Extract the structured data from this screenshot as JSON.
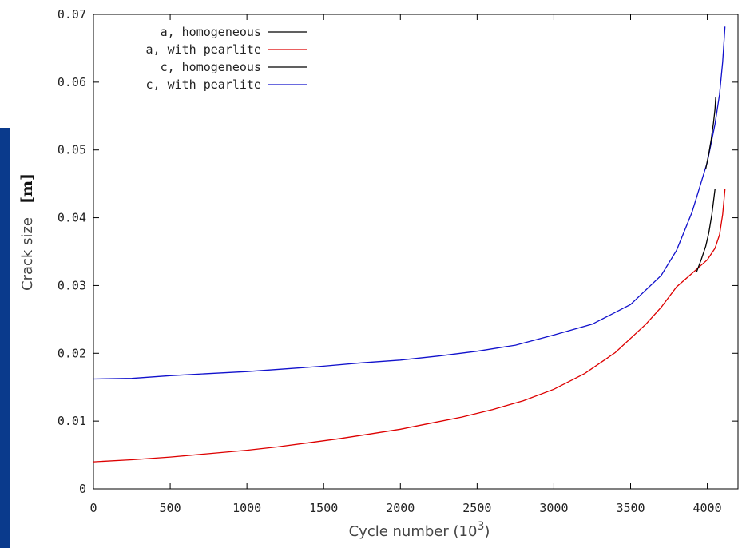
{
  "colors": {
    "left_band": "#0a3a8c",
    "axes": "#000000",
    "text": "#222222"
  },
  "chart_data": {
    "type": "line",
    "xlabel": "Cycle number (10",
    "xlabel_superscript": "3",
    "xlabel_close": ")",
    "ylabel": "Crack size",
    "ylabel_unit": "[m]",
    "xlim": [
      0,
      4200
    ],
    "ylim": [
      0,
      0.07
    ],
    "x_ticks": [
      0,
      500,
      1000,
      1500,
      2000,
      2500,
      3000,
      3500,
      4000
    ],
    "x_tick_labels": [
      "0",
      "500",
      "1000",
      "1500",
      "2000",
      "2500",
      "3000",
      "3500",
      "4000"
    ],
    "y_ticks": [
      0,
      0.01,
      0.02,
      0.03,
      0.04,
      0.05,
      0.06,
      0.07
    ],
    "y_tick_labels": [
      "0",
      "0.01",
      "0.02",
      "0.03",
      "0.04",
      "0.05",
      "0.06",
      "0.07"
    ],
    "grid": false,
    "legend_position": "top-left",
    "series": [
      {
        "name": "a, homogeneous",
        "color": "#000000",
        "x": [
          3930,
          3960,
          3990,
          4010,
          4030,
          4050
        ],
        "y": [
          0.032,
          0.0338,
          0.0358,
          0.0378,
          0.0405,
          0.0442
        ]
      },
      {
        "name": "a, with pearlite",
        "color": "#dd0000",
        "x": [
          0,
          250,
          500,
          750,
          1000,
          1200,
          1400,
          1600,
          1800,
          2000,
          2200,
          2400,
          2600,
          2800,
          3000,
          3200,
          3400,
          3600,
          3700,
          3800,
          3900,
          3950,
          4000,
          4050,
          4080,
          4100,
          4115
        ],
        "y": [
          0.004,
          0.0043,
          0.0047,
          0.0052,
          0.0057,
          0.0062,
          0.0068,
          0.0074,
          0.0081,
          0.0088,
          0.0097,
          0.0106,
          0.0117,
          0.013,
          0.0147,
          0.017,
          0.0201,
          0.0243,
          0.0268,
          0.0298,
          0.0318,
          0.0328,
          0.0338,
          0.0355,
          0.0375,
          0.0405,
          0.0442
        ]
      },
      {
        "name": "c, homogeneous",
        "color": "#000000",
        "x": [
          3990,
          4010,
          4025,
          4040,
          4050,
          4055
        ],
        "y": [
          0.0472,
          0.0495,
          0.0515,
          0.054,
          0.056,
          0.0578
        ]
      },
      {
        "name": "c, with pearlite",
        "color": "#1111cc",
        "x": [
          0,
          250,
          500,
          750,
          1000,
          1250,
          1500,
          1750,
          2000,
          2250,
          2500,
          2750,
          3000,
          3250,
          3500,
          3700,
          3800,
          3900,
          3950,
          4000,
          4050,
          4080,
          4100,
          4115
        ],
        "y": [
          0.0162,
          0.0163,
          0.0167,
          0.017,
          0.0173,
          0.0177,
          0.0181,
          0.0186,
          0.019,
          0.0196,
          0.0203,
          0.0212,
          0.0227,
          0.0243,
          0.0272,
          0.0315,
          0.0352,
          0.0408,
          0.0445,
          0.0482,
          0.0538,
          0.0582,
          0.063,
          0.0682
        ]
      }
    ]
  }
}
